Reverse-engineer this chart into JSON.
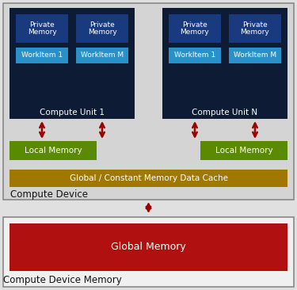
{
  "fig_width": 3.75,
  "fig_height": 3.66,
  "dpi": 100,
  "bg_color": "#e0e0e0",
  "compute_device_bg": "#d4d4d4",
  "compute_unit_bg": "#0d1b35",
  "private_mem_color": "#1a3a80",
  "workitem_color": "#2a90c8",
  "local_mem_color": "#5a8a00",
  "global_cache_color": "#a07800",
  "global_mem_color": "#b01010",
  "bottom_device_bg": "#f0f0f0",
  "text_white": "#ffffff",
  "text_dark": "#111111",
  "arrow_color": "#990000",
  "border_color": "#888888",
  "title_compute_device": "Compute Device",
  "title_compute_device_memory": "Compute Device Memory",
  "label_cu1": "Compute Unit 1",
  "label_cuN": "Compute Unit N",
  "label_pm": "Private\nMemory",
  "label_wi1": "WorkItem 1",
  "label_wiM": "WorkItem M",
  "label_lm": "Local Memory",
  "label_gc": "Global / Constant Memory Data Cache",
  "label_gm": "Global Memory"
}
